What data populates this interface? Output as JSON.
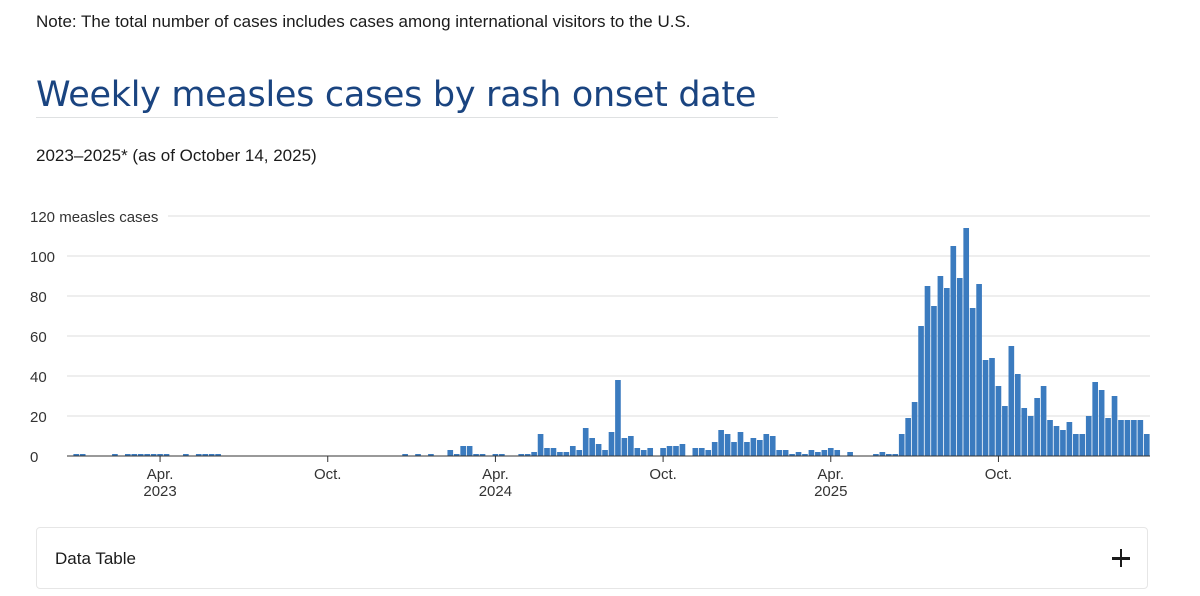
{
  "note": "Note: The total number of cases includes cases among international visitors to the U.S.",
  "title": "Weekly measles cases by rash onset date",
  "subtitle": "2023–2025* (as of October 14, 2025)",
  "accordion": {
    "label": "Data Table",
    "icon": "plus-icon"
  },
  "colors": {
    "bar": "#3b7bbf",
    "title": "#1a4480",
    "grid": "#dddddd"
  },
  "chart_data": {
    "type": "bar",
    "title": "Weekly measles cases by rash onset date",
    "subtitle": "2023–2025* (as of October 14, 2025)",
    "ylabel": "measles cases",
    "ylim": [
      0,
      120
    ],
    "yticks": [
      0,
      20,
      40,
      60,
      80,
      100,
      120
    ],
    "ytick_labels": [
      "0",
      "20",
      "40",
      "60",
      "80",
      "100",
      "120 measles cases"
    ],
    "grid": true,
    "x_start": "2023-01-01",
    "x_interval": "week",
    "xticks": [
      {
        "week": 13,
        "month": "Apr.",
        "year": "2023"
      },
      {
        "week": 39,
        "month": "Oct.",
        "year": ""
      },
      {
        "week": 65,
        "month": "Apr.",
        "year": "2024"
      },
      {
        "week": 91,
        "month": "Oct.",
        "year": ""
      },
      {
        "week": 117,
        "month": "Apr.",
        "year": "2025"
      },
      {
        "week": 143,
        "month": "Oct.",
        "year": ""
      }
    ],
    "values": [
      1,
      1,
      0,
      0,
      0,
      0,
      1,
      0,
      1,
      1,
      1,
      1,
      1,
      1,
      1,
      0,
      0,
      1,
      0,
      1,
      1,
      1,
      1,
      0,
      0,
      0,
      0,
      0,
      0,
      0,
      0,
      0,
      0,
      0,
      0,
      0,
      0,
      0,
      0,
      0,
      0,
      0,
      0,
      0,
      0,
      0,
      0,
      0,
      0,
      0,
      0,
      1,
      0,
      1,
      0,
      1,
      0,
      0,
      3,
      1,
      5,
      5,
      1,
      1,
      0,
      1,
      1,
      0,
      0,
      1,
      1,
      2,
      11,
      4,
      4,
      2,
      2,
      5,
      3,
      14,
      9,
      6,
      3,
      12,
      38,
      9,
      10,
      4,
      3,
      4,
      0,
      4,
      5,
      5,
      6,
      0,
      4,
      4,
      3,
      7,
      13,
      11,
      7,
      12,
      7,
      9,
      8,
      11,
      10,
      3,
      3,
      1,
      2,
      1,
      3,
      2,
      3,
      4,
      3,
      0,
      2,
      0,
      0,
      0,
      1,
      2,
      1,
      1,
      11,
      19,
      27,
      65,
      85,
      75,
      90,
      84,
      105,
      89,
      114,
      74,
      86,
      48,
      49,
      35,
      25,
      55,
      41,
      24,
      20,
      29,
      35,
      18,
      15,
      13,
      17,
      11,
      11,
      20,
      37,
      33,
      19,
      30,
      18,
      18,
      18,
      18,
      11
    ]
  }
}
